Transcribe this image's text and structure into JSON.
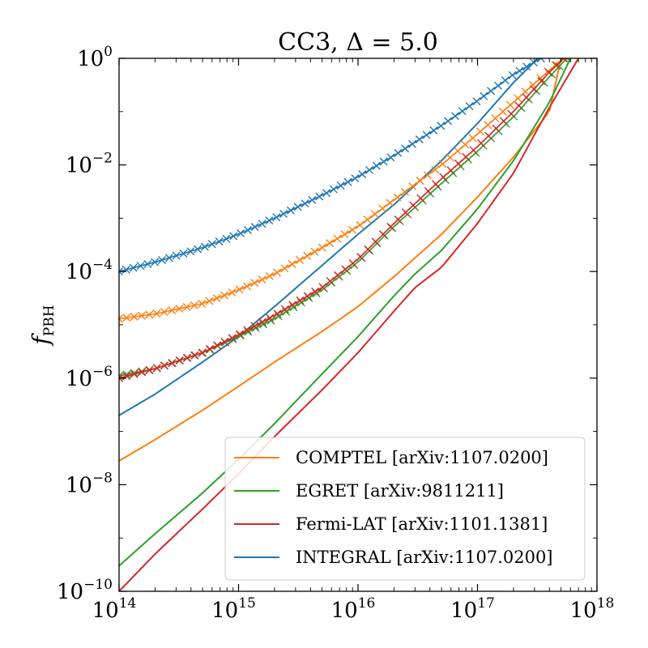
{
  "chart_data": {
    "type": "line",
    "title_base": "CC3, Δ = ",
    "title_value": "5.0",
    "ylabel_base": "f",
    "ylabel_sub": "PBH",
    "xlabel": "",
    "x_scale": "log",
    "y_scale": "log",
    "xlim": [
      100000000000000.0,
      1e+18
    ],
    "ylim": [
      1e-10,
      1
    ],
    "x_ticks": [
      {
        "base": "10",
        "exp": "14",
        "value": 100000000000000.0
      },
      {
        "base": "10",
        "exp": "15",
        "value": 1000000000000000.0
      },
      {
        "base": "10",
        "exp": "16",
        "value": 1e+16
      },
      {
        "base": "10",
        "exp": "17",
        "value": 1e+17
      },
      {
        "base": "10",
        "exp": "18",
        "value": 1e+18
      }
    ],
    "y_ticks": [
      {
        "base": "10",
        "exp": "0",
        "value": 1
      },
      {
        "base": "10",
        "exp": "−2",
        "value": 0.01
      },
      {
        "base": "10",
        "exp": "−4",
        "value": 0.0001
      },
      {
        "base": "10",
        "exp": "−6",
        "value": 1e-06
      },
      {
        "base": "10",
        "exp": "−8",
        "value": 1e-08
      },
      {
        "base": "10",
        "exp": "−10",
        "value": 1e-10
      }
    ],
    "legend_placement": "lower-right",
    "series": [
      {
        "name": "COMPTEL",
        "ref": "[arXiv:1107.0200]",
        "color": "#ff7f0e",
        "style": "line",
        "x": [
          100000000000000.0,
          200000000000000.0,
          500000000000000.0,
          1000000000000000.0,
          2000000000000000.0,
          5000000000000000.0,
          1e+16,
          2e+16,
          5e+16,
          1e+17,
          2e+17,
          4e+17,
          5e+17
        ],
        "y": [
          2.8e-08,
          7e-08,
          2.5e-07,
          7e-07,
          2e-06,
          7.5e-06,
          2.2e-05,
          8e-05,
          0.0005,
          0.0025,
          0.014,
          0.1,
          1
        ]
      },
      {
        "name": "EGRET",
        "ref": "[arXiv:9811211]",
        "color": "#2ca02c",
        "style": "line",
        "x": [
          100000000000000.0,
          200000000000000.0,
          500000000000000.0,
          1000000000000000.0,
          2000000000000000.0,
          5000000000000000.0,
          1e+16,
          2e+16,
          3e+16,
          5e+16,
          1e+17,
          2e+17,
          4e+17,
          6e+17
        ],
        "y": [
          3e-10,
          1.2e-09,
          7e-09,
          3e-08,
          1.4e-07,
          1.2e-06,
          6e-06,
          3.5e-05,
          9e-05,
          0.00025,
          0.0015,
          0.012,
          0.15,
          1
        ]
      },
      {
        "name": "Fermi-LAT",
        "ref": "[arXiv:1101.1381]",
        "color": "#d62728",
        "style": "line",
        "x": [
          100000000000000.0,
          200000000000000.0,
          500000000000000.0,
          1000000000000000.0,
          2000000000000000.0,
          5000000000000000.0,
          1e+16,
          2e+16,
          3e+16,
          5e+16,
          1e+17,
          2e+17,
          4e+17,
          7e+17
        ],
        "y": [
          1e-10,
          5e-10,
          3.5e-09,
          1.6e-08,
          8e-08,
          6e-07,
          3e-06,
          1.8e-05,
          5e-05,
          0.00012,
          0.0008,
          0.007,
          0.12,
          1
        ]
      },
      {
        "name": "INTEGRAL",
        "ref": "[arXiv:1107.0200]",
        "color": "#1f77b4",
        "style": "line",
        "x": [
          100000000000000.0,
          200000000000000.0,
          500000000000000.0,
          1000000000000000.0,
          2000000000000000.0,
          5000000000000000.0,
          1e+16,
          2e+16,
          5e+16,
          1e+17,
          2e+17,
          3.2e+17
        ],
        "y": [
          2e-07,
          5e-07,
          2e-06,
          6e-06,
          2.2e-05,
          0.00013,
          0.0005,
          0.0018,
          0.012,
          0.06,
          0.35,
          1
        ]
      },
      {
        "name": "",
        "color": "#1f77b4",
        "style": "marker",
        "x": [
          100000000000000.0,
          200000000000000.0,
          500000000000000.0,
          1000000000000000.0,
          2000000000000000.0,
          5000000000000000.0,
          1e+16,
          2e+16,
          5e+16,
          1e+17,
          2e+17,
          3.4e+17
        ],
        "y": [
          0.0001,
          0.00015,
          0.00028,
          0.0005,
          0.001,
          0.0027,
          0.006,
          0.015,
          0.055,
          0.16,
          0.5,
          1
        ]
      },
      {
        "name": "",
        "color": "#ff7f0e",
        "style": "marker",
        "x": [
          100000000000000.0,
          200000000000000.0,
          500000000000000.0,
          1000000000000000.0,
          2000000000000000.0,
          5000000000000000.0,
          1e+16,
          2e+16,
          5e+16,
          1e+17,
          2e+17,
          4e+17,
          5.2e+17
        ],
        "y": [
          1.3e-05,
          1.6e-05,
          2.5e-05,
          4.5e-05,
          9e-05,
          0.00028,
          0.0007,
          0.0022,
          0.01,
          0.038,
          0.15,
          0.6,
          1
        ]
      },
      {
        "name": "",
        "color": "#2ca02c",
        "style": "marker",
        "x": [
          100000000000000.0,
          200000000000000.0,
          500000000000000.0,
          1000000000000000.0,
          2000000000000000.0,
          5000000000000000.0,
          1e+16,
          2e+16,
          5e+16,
          1e+17,
          2e+17,
          4e+17,
          5.6e+17
        ],
        "y": [
          1.1e-06,
          1.5e-06,
          3e-06,
          6e-06,
          1.3e-05,
          4.5e-05,
          0.00015,
          0.0007,
          0.0045,
          0.018,
          0.08,
          0.45,
          1
        ]
      },
      {
        "name": "",
        "color": "#d62728",
        "style": "marker",
        "x": [
          100000000000000.0,
          200000000000000.0,
          500000000000000.0,
          1000000000000000.0,
          2000000000000000.0,
          5000000000000000.0,
          1e+16,
          2e+16,
          5e+16,
          1e+17,
          2e+17,
          4e+17,
          5.3e+17
        ],
        "y": [
          1e-06,
          1.5e-06,
          3e-06,
          6.5e-06,
          1.5e-05,
          5e-05,
          0.00017,
          0.0008,
          0.0055,
          0.022,
          0.1,
          0.55,
          1
        ]
      }
    ]
  }
}
